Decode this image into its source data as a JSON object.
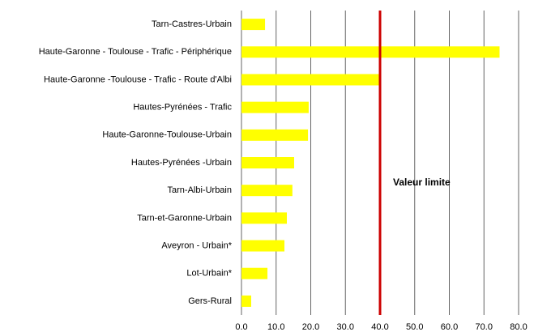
{
  "chart_data": {
    "type": "hbar",
    "categories": [
      "Tarn-Castres-Urbain",
      "Haute-Garonne - Toulouse - Trafic - Périphérique",
      "Haute-Garonne -Toulouse - Trafic - Route d'Albi",
      "Hautes-Pyrénées - Trafic",
      "Haute-Garonne-Toulouse-Urbain",
      "Hautes-Pyrénées -Urbain",
      "Tarn-Albi-Urbain",
      "Tarn-et-Garonne-Urbain",
      "Aveyron - Urbain*",
      "Lot-Urbain*",
      "Gers-Rural"
    ],
    "values": [
      6.8,
      74.5,
      39.8,
      19.4,
      19.2,
      15.2,
      14.7,
      13.1,
      12.4,
      7.5,
      2.8
    ],
    "color": "#ffff00",
    "xlim": [
      0,
      80
    ],
    "xticks": [
      {
        "value": 0,
        "label": "0.0"
      },
      {
        "value": 10,
        "label": "10.0"
      },
      {
        "value": 20,
        "label": "20.0"
      },
      {
        "value": 30,
        "label": "30.0"
      },
      {
        "value": 40,
        "label": "40.0"
      },
      {
        "value": 50,
        "label": "50.0"
      },
      {
        "value": 60,
        "label": "60.0"
      },
      {
        "value": 70,
        "label": "70.0"
      },
      {
        "value": 80,
        "label": "80.0"
      }
    ],
    "grid": true,
    "reference_line": {
      "value": 40,
      "label": "Valeur limite",
      "color": "#cc0000"
    }
  }
}
